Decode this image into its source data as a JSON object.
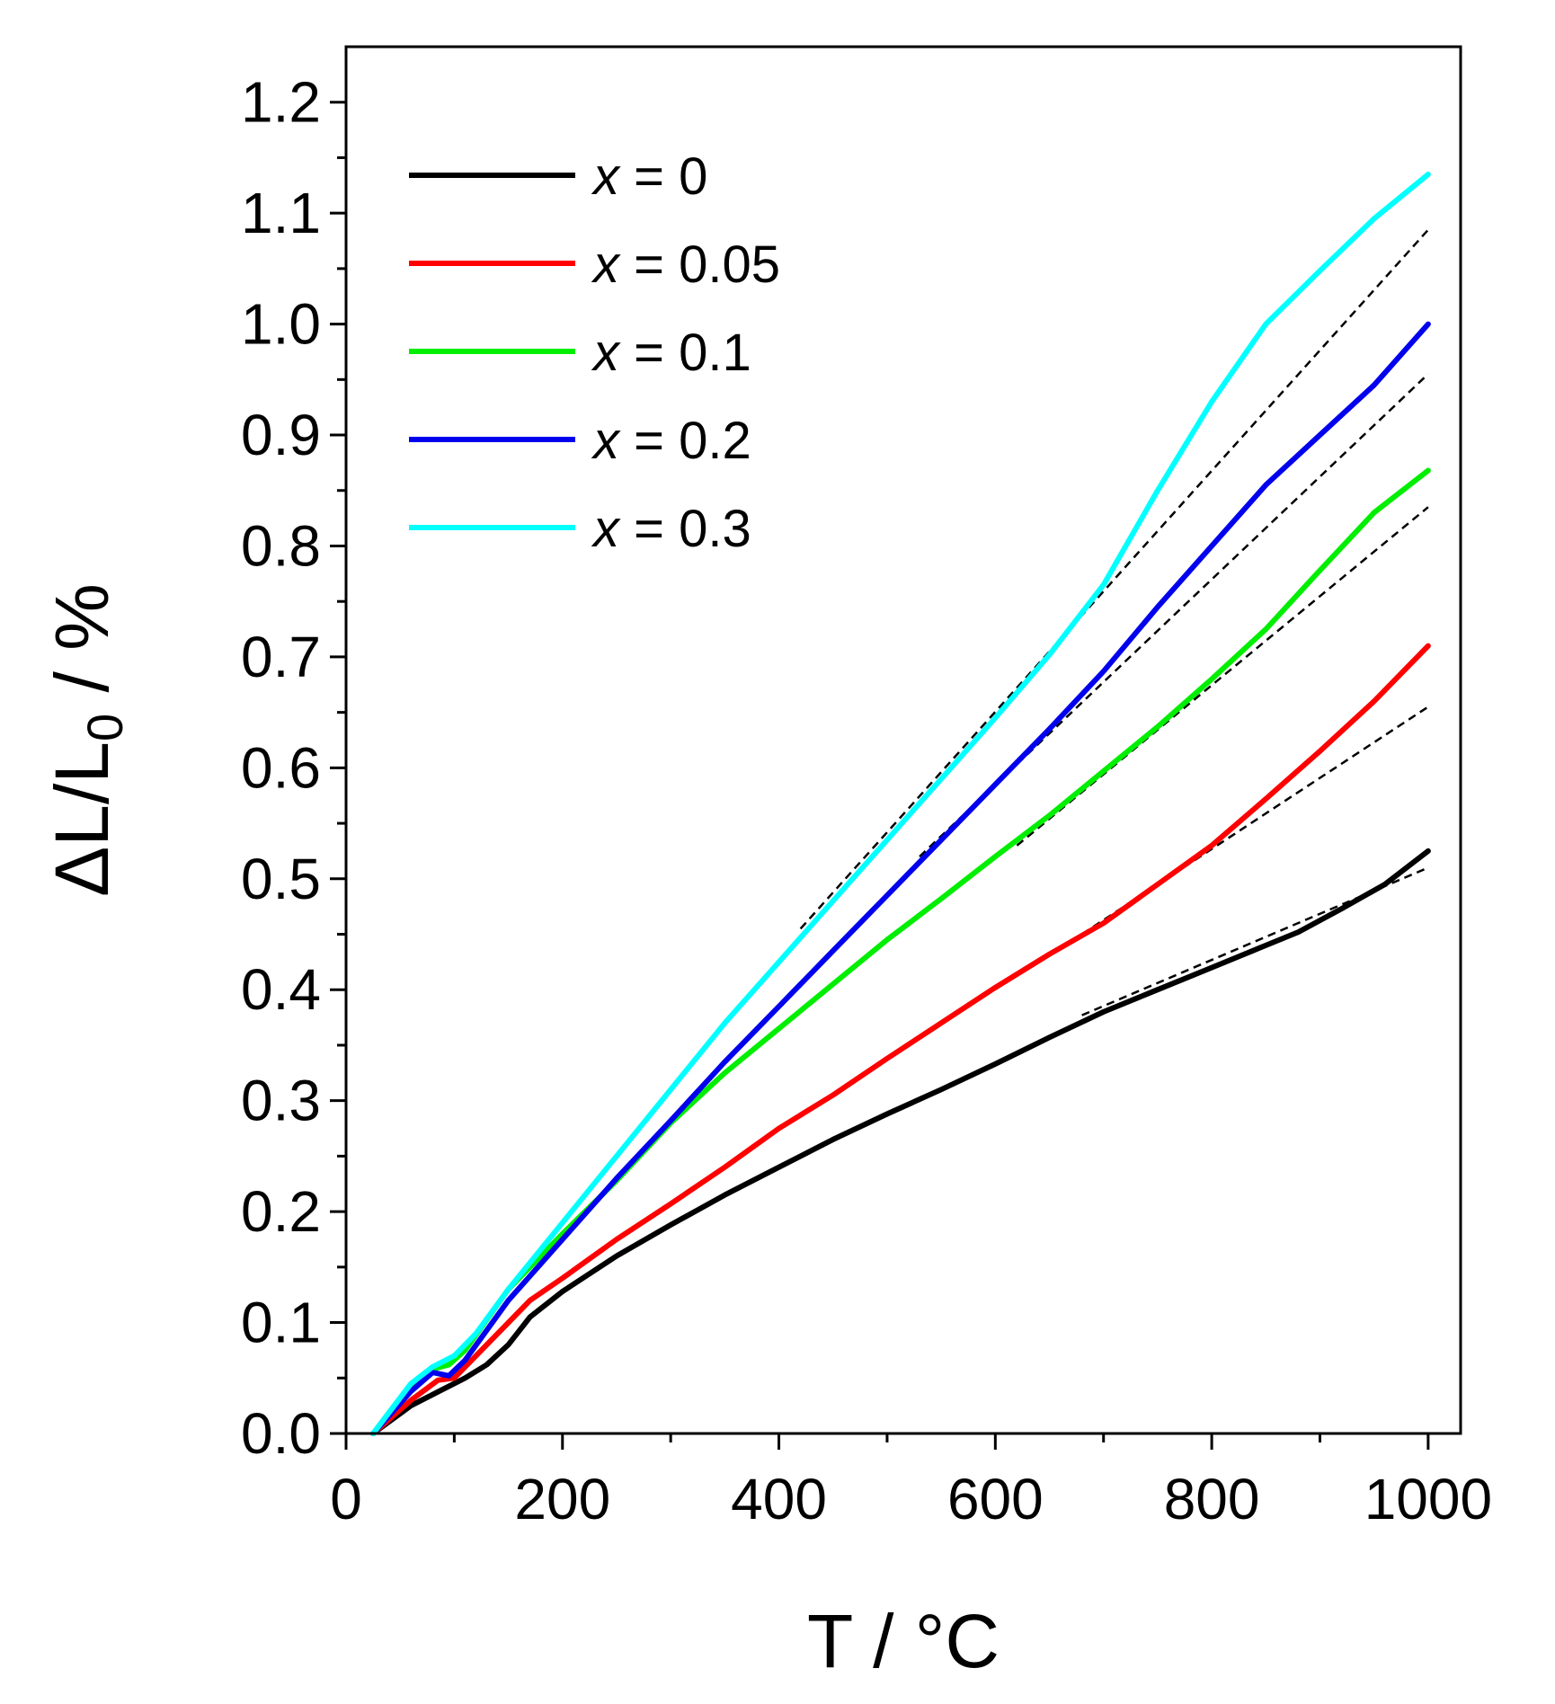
{
  "chart_data": {
    "type": "line",
    "xlabel": "T / °C",
    "ylabel_main": "ΔL/L",
    "ylabel_sub": "0",
    "ylabel_unit": " / %",
    "xlim": [
      0,
      1030
    ],
    "ylim": [
      0,
      1.25
    ],
    "xticks": [
      0,
      200,
      400,
      600,
      800,
      1000
    ],
    "xtick_labels": [
      "0",
      "200",
      "400",
      "600",
      "800",
      "1000"
    ],
    "yticks": [
      0,
      0.1,
      0.2,
      0.3,
      0.4,
      0.5,
      0.6,
      0.7,
      0.8,
      0.9,
      1.0,
      1.1,
      1.2
    ],
    "ytick_labels": [
      "0.0",
      "0.1",
      "0.2",
      "0.3",
      "0.4",
      "0.5",
      "0.6",
      "0.7",
      "0.8",
      "0.9",
      "1.0",
      "1.1",
      "1.2"
    ],
    "legend_position": "top-left",
    "series": [
      {
        "name": "x = 0",
        "legend_var": "x",
        "legend_value": " = 0",
        "color": "#000000",
        "x": [
          25,
          60,
          90,
          110,
          130,
          150,
          170,
          200,
          250,
          300,
          350,
          400,
          450,
          500,
          550,
          600,
          650,
          700,
          750,
          800,
          850,
          880,
          920,
          960,
          1000
        ],
        "y": [
          0,
          0.025,
          0.04,
          0.05,
          0.062,
          0.08,
          0.105,
          0.128,
          0.16,
          0.188,
          0.215,
          0.24,
          0.265,
          0.288,
          0.31,
          0.333,
          0.357,
          0.38,
          0.4,
          0.42,
          0.44,
          0.452,
          0.473,
          0.495,
          0.525
        ]
      },
      {
        "name": "x = 0.05",
        "legend_var": "x",
        "legend_value": " = 0.05",
        "color": "#ff0000",
        "x": [
          25,
          60,
          85,
          100,
          120,
          150,
          170,
          200,
          250,
          300,
          350,
          400,
          450,
          500,
          550,
          600,
          650,
          700,
          750,
          800,
          850,
          900,
          950,
          1000
        ],
        "y": [
          0,
          0.03,
          0.048,
          0.05,
          0.07,
          0.1,
          0.12,
          0.14,
          0.175,
          0.207,
          0.24,
          0.275,
          0.305,
          0.338,
          0.37,
          0.402,
          0.432,
          0.46,
          0.495,
          0.53,
          0.572,
          0.615,
          0.66,
          0.71
        ]
      },
      {
        "name": "x = 0.1",
        "legend_var": "x",
        "legend_value": " = 0.1",
        "color": "#00ee00",
        "x": [
          25,
          60,
          80,
          95,
          110,
          150,
          200,
          250,
          300,
          350,
          400,
          450,
          500,
          550,
          600,
          650,
          700,
          750,
          800,
          850,
          900,
          950,
          1000
        ],
        "y": [
          0,
          0.04,
          0.058,
          0.062,
          0.075,
          0.13,
          0.18,
          0.228,
          0.28,
          0.325,
          0.365,
          0.405,
          0.445,
          0.482,
          0.52,
          0.557,
          0.597,
          0.637,
          0.68,
          0.725,
          0.778,
          0.83,
          0.868
        ]
      },
      {
        "name": "x = 0.2",
        "legend_var": "x",
        "legend_value": " = 0.2",
        "color": "#0000ee",
        "x": [
          25,
          60,
          80,
          95,
          110,
          150,
          200,
          250,
          300,
          350,
          400,
          450,
          500,
          550,
          600,
          650,
          700,
          750,
          800,
          850,
          900,
          950,
          1000
        ],
        "y": [
          0,
          0.038,
          0.055,
          0.052,
          0.066,
          0.12,
          0.175,
          0.23,
          0.282,
          0.335,
          0.385,
          0.435,
          0.485,
          0.535,
          0.585,
          0.635,
          0.687,
          0.745,
          0.8,
          0.855,
          0.9,
          0.945,
          1.0
        ]
      },
      {
        "name": "x = 0.3",
        "legend_var": "x",
        "legend_value": " = 0.3",
        "color": "#00ffff",
        "x": [
          25,
          60,
          80,
          100,
          120,
          150,
          200,
          250,
          300,
          350,
          400,
          450,
          500,
          550,
          600,
          650,
          700,
          750,
          800,
          850,
          900,
          950,
          1000
        ],
        "y": [
          0,
          0.045,
          0.06,
          0.07,
          0.09,
          0.13,
          0.19,
          0.25,
          0.31,
          0.37,
          0.425,
          0.48,
          0.535,
          0.59,
          0.645,
          0.702,
          0.765,
          0.85,
          0.93,
          1.0,
          1.048,
          1.095,
          1.135
        ]
      }
    ],
    "fit_lines": [
      {
        "x": [
          680,
          1000
        ],
        "y": [
          0.377,
          0.51
        ]
      },
      {
        "x": [
          680,
          1000
        ],
        "y": [
          0.45,
          0.655
        ]
      },
      {
        "x": [
          620,
          1000
        ],
        "y": [
          0.53,
          0.835
        ]
      },
      {
        "x": [
          530,
          1000
        ],
        "y": [
          0.52,
          0.955
        ]
      },
      {
        "x": [
          420,
          1000
        ],
        "y": [
          0.455,
          1.085
        ]
      }
    ]
  }
}
